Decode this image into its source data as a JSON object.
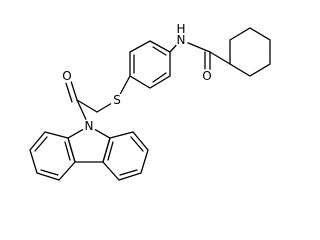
{
  "atoms": [
    {
      "label": "N"
    },
    {
      "label": "H"
    },
    {
      "label": "O"
    },
    {
      "label": "S"
    },
    {
      "label": "O"
    },
    {
      "label": "N"
    }
  ]
}
